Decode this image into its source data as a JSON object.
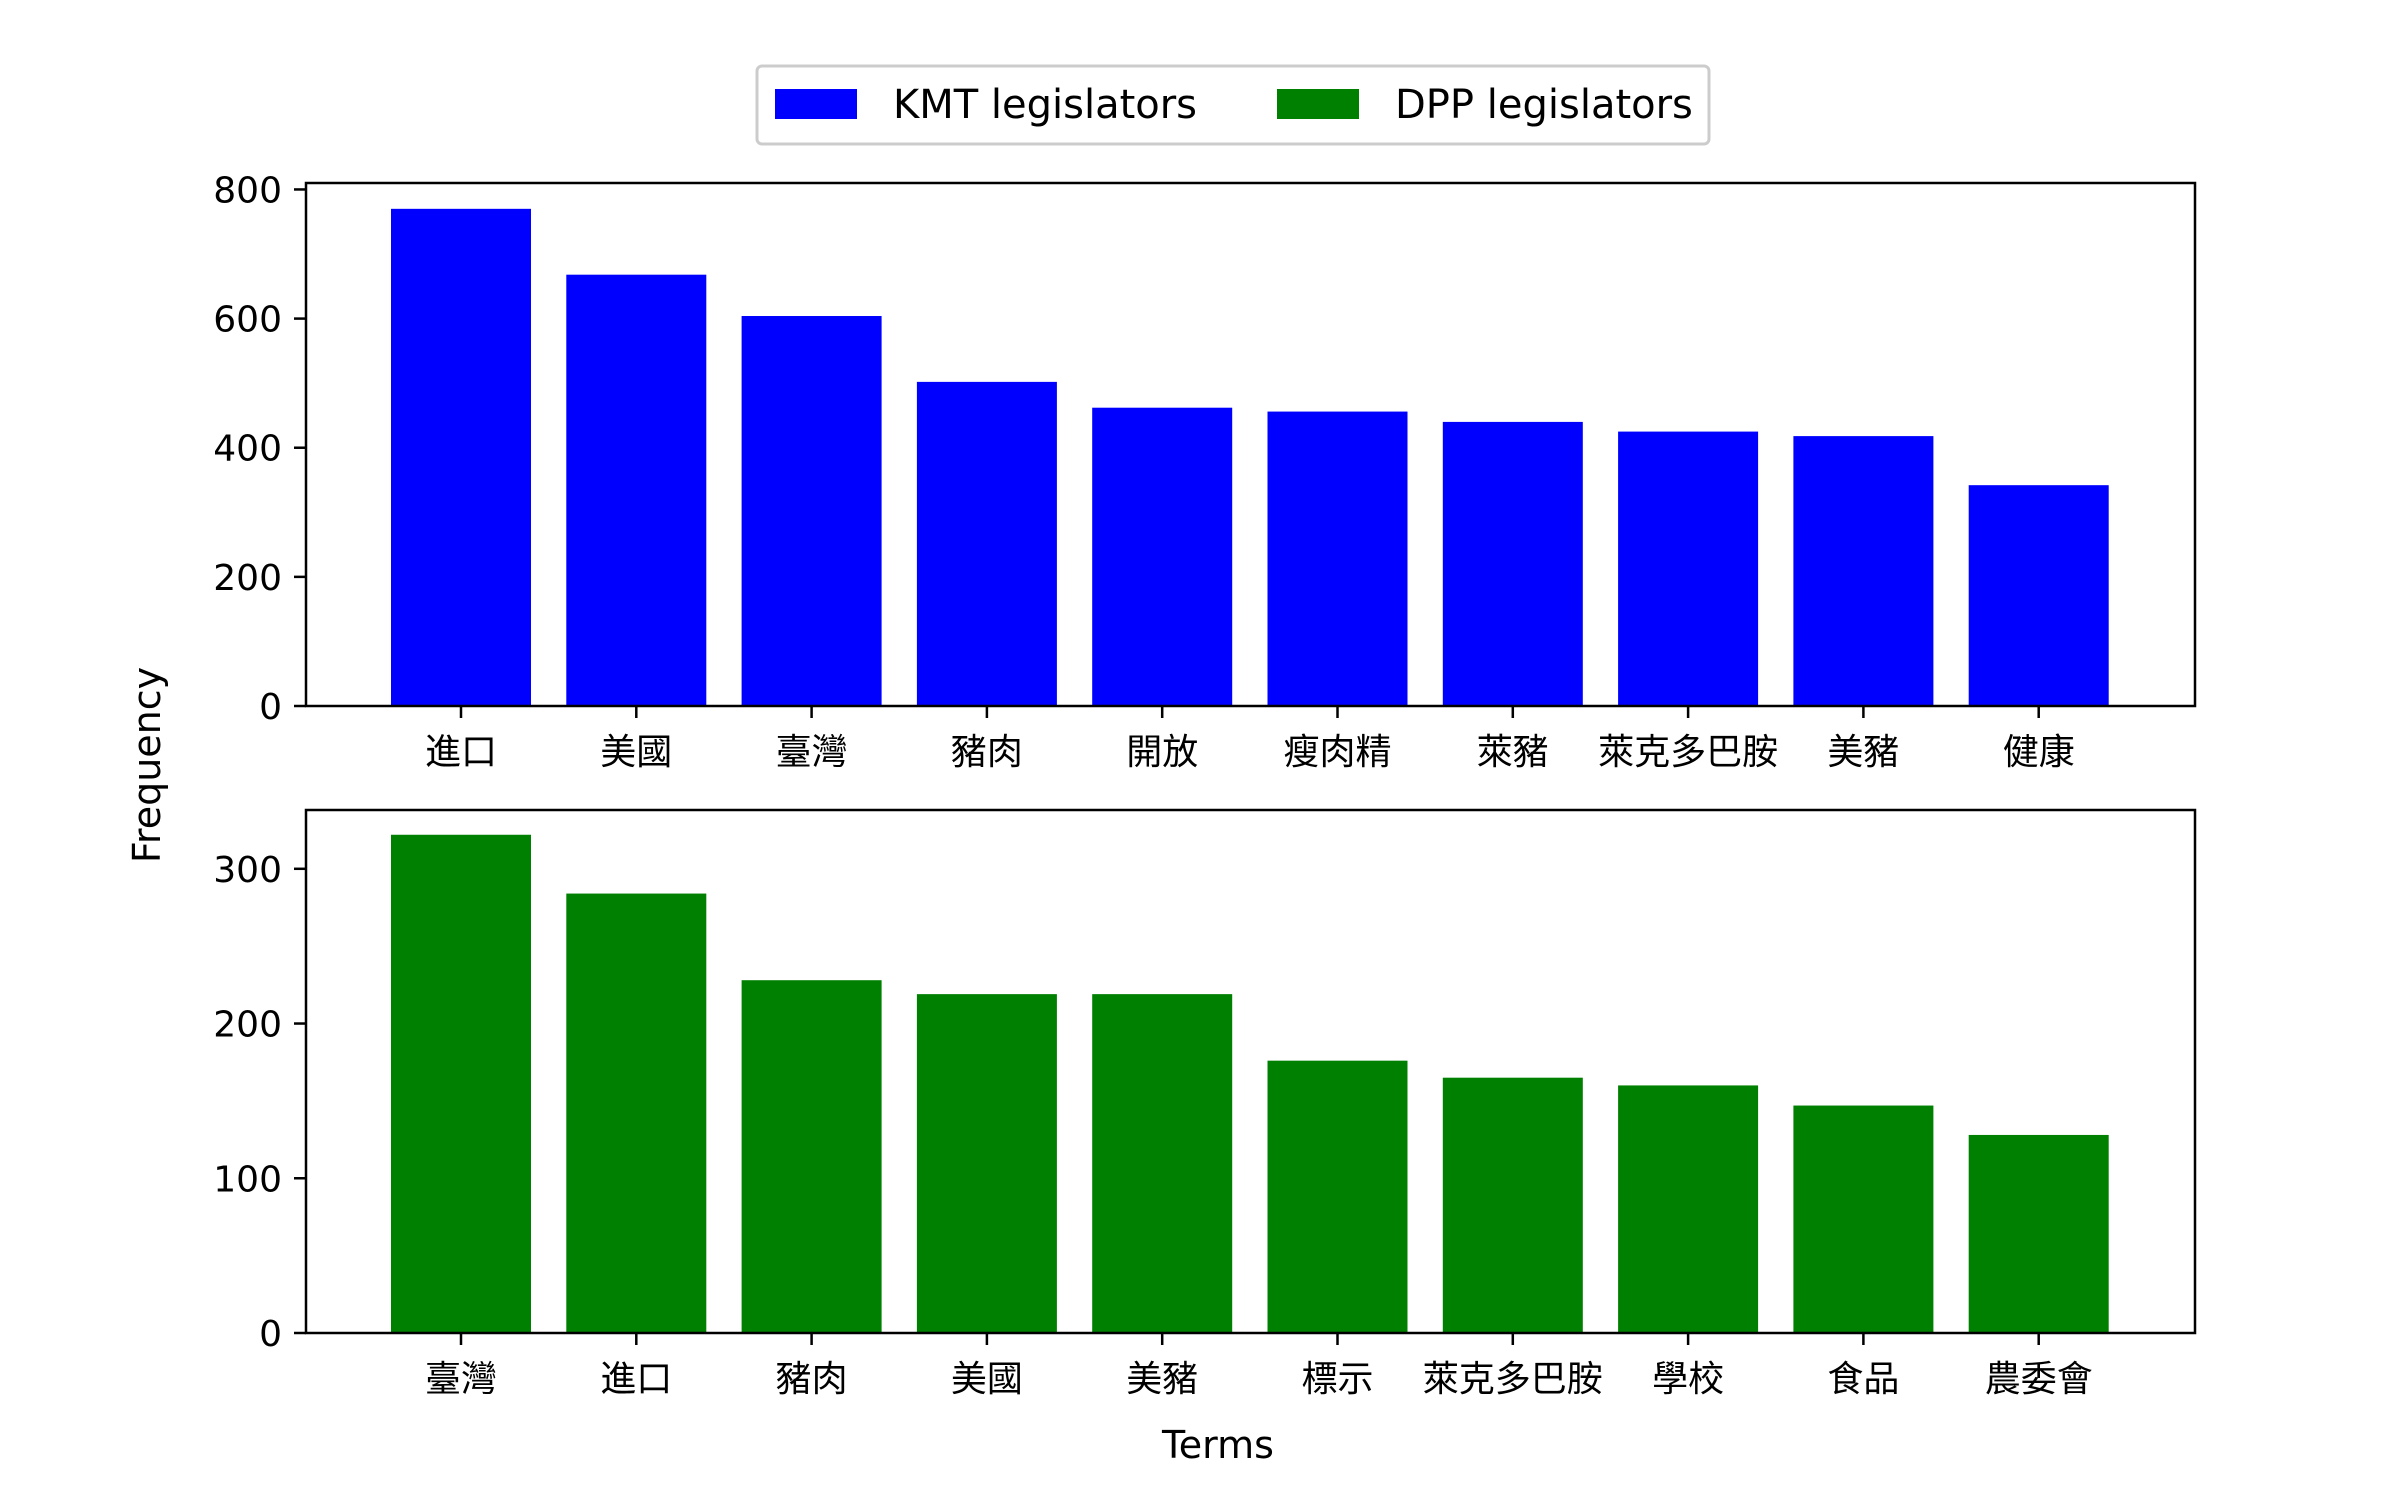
{
  "figure": {
    "ylabel": "Frequency",
    "xlabel": "Terms"
  },
  "legend": {
    "placement": "top-center",
    "entries": [
      {
        "label": "KMT legislators",
        "color": "#0000ff"
      },
      {
        "label": "DPP legislators",
        "color": "#008000"
      }
    ]
  },
  "chart_data": [
    {
      "type": "bar",
      "series_name": "KMT legislators",
      "color": "#0000ff",
      "categories": [
        "進口",
        "美國",
        "臺灣",
        "豬肉",
        "開放",
        "瘦肉精",
        "萊豬",
        "萊克多巴胺",
        "美豬",
        "健康"
      ],
      "values": [
        770,
        668,
        604,
        502,
        462,
        456,
        440,
        425,
        418,
        342
      ],
      "ylim": [
        0,
        810
      ],
      "yticks": [
        0,
        200,
        400,
        600,
        800
      ],
      "grid": false
    },
    {
      "type": "bar",
      "series_name": "DPP legislators",
      "color": "#008000",
      "categories": [
        "臺灣",
        "進口",
        "豬肉",
        "美國",
        "美豬",
        "標示",
        "萊克多巴胺",
        "學校",
        "食品",
        "農委會"
      ],
      "values": [
        322,
        284,
        228,
        219,
        219,
        176,
        165,
        160,
        147,
        128
      ],
      "ylim": [
        0,
        338
      ],
      "yticks": [
        0,
        100,
        200,
        300
      ],
      "grid": false
    }
  ]
}
